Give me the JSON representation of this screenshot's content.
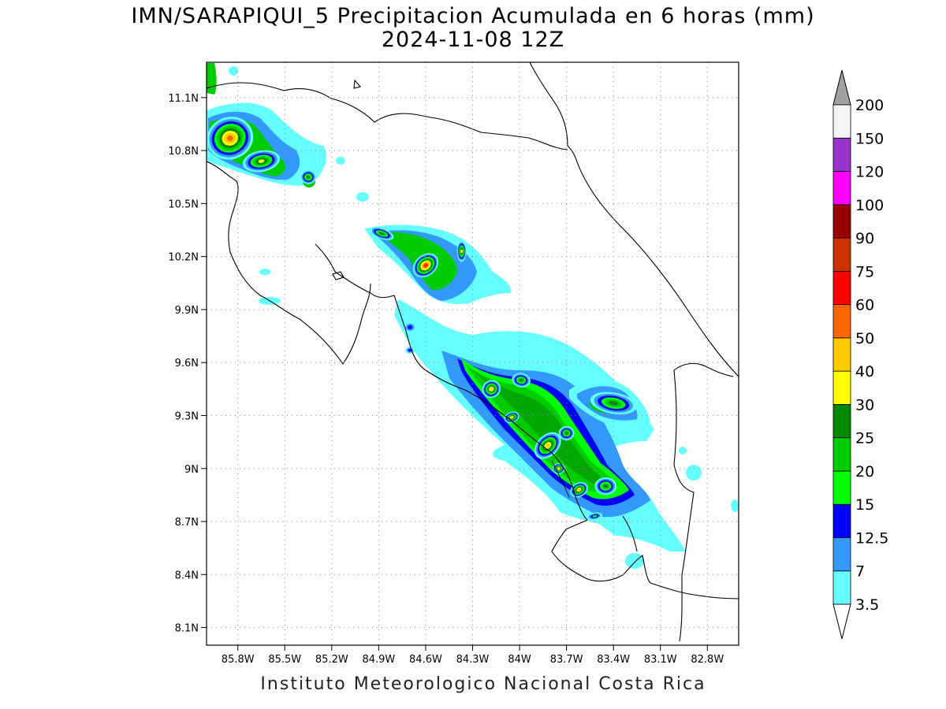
{
  "title": "IMN/SARAPIQUI_5 Precipitacion Acumulada en 6 horas (mm)",
  "subtitle": "2024-11-08 12Z",
  "footer": "Instituto Meteorologico Nacional Costa Rica",
  "map": {
    "lon_range": [
      -86.0,
      -82.6
    ],
    "lat_range": [
      8.0,
      11.3
    ],
    "lon_ticks": [
      "85.8W",
      "85.5W",
      "85.2W",
      "84.9W",
      "84.6W",
      "84.3W",
      "84W",
      "83.7W",
      "83.4W",
      "83.1W",
      "82.8W"
    ],
    "lon_tick_values": [
      -85.8,
      -85.5,
      -85.2,
      -84.9,
      -84.6,
      -84.3,
      -84.0,
      -83.7,
      -83.4,
      -83.1,
      -82.8
    ],
    "lat_ticks": [
      "8.1N",
      "8.4N",
      "8.7N",
      "9N",
      "9.3N",
      "9.6N",
      "9.9N",
      "10.2N",
      "10.5N",
      "10.8N",
      "11.1N"
    ],
    "lat_tick_values": [
      8.1,
      8.4,
      8.7,
      9.0,
      9.3,
      9.6,
      9.9,
      10.2,
      10.5,
      10.8,
      11.1
    ],
    "grid": "dotted"
  },
  "colorbar": {
    "labels": [
      "3.5",
      "7",
      "12.5",
      "15",
      "20",
      "25",
      "30",
      "40",
      "50",
      "60",
      "75",
      "90",
      "100",
      "120",
      "150",
      "200"
    ],
    "colors": [
      "#66ffff",
      "#3399ff",
      "#0000ff",
      "#00ff00",
      "#00cc00",
      "#008800",
      "#ffff00",
      "#ffcc00",
      "#ff6600",
      "#ff0000",
      "#cc3300",
      "#990000",
      "#ff00ff",
      "#9933cc",
      "#f5f5f5"
    ],
    "triangle_low": "#ffffff",
    "triangle_high": "#a0a0a0"
  },
  "rain_cells": [
    {
      "lon": -85.85,
      "lat": 10.87,
      "rx": 0.15,
      "ry": 0.12,
      "rot": 20,
      "level": 8
    },
    {
      "lon": -85.65,
      "lat": 10.74,
      "rx": 0.12,
      "ry": 0.06,
      "rot": 10,
      "level": 6
    },
    {
      "lon": -85.35,
      "lat": 10.65,
      "rx": 0.05,
      "ry": 0.04,
      "rot": 0,
      "level": 5
    },
    {
      "lon": -84.88,
      "lat": 10.33,
      "rx": 0.08,
      "ry": 0.03,
      "rot": -20,
      "level": 5
    },
    {
      "lon": -84.6,
      "lat": 10.15,
      "rx": 0.09,
      "ry": 0.06,
      "rot": 40,
      "level": 9
    },
    {
      "lon": -84.37,
      "lat": 10.23,
      "rx": 0.03,
      "ry": 0.06,
      "rot": 0,
      "level": 6
    },
    {
      "lon": -84.7,
      "lat": 9.8,
      "rx": 0.04,
      "ry": 0.03,
      "rot": 0,
      "level": 2
    },
    {
      "lon": -84.7,
      "lat": 9.67,
      "rx": 0.03,
      "ry": 0.02,
      "rot": 0,
      "level": 2
    },
    {
      "lon": -84.18,
      "lat": 9.45,
      "rx": 0.06,
      "ry": 0.05,
      "rot": 30,
      "level": 7
    },
    {
      "lon": -84.05,
      "lat": 9.29,
      "rx": 0.05,
      "ry": 0.03,
      "rot": 20,
      "level": 7
    },
    {
      "lon": -83.99,
      "lat": 9.5,
      "rx": 0.06,
      "ry": 0.04,
      "rot": -10,
      "level": 5
    },
    {
      "lon": -83.82,
      "lat": 9.13,
      "rx": 0.1,
      "ry": 0.06,
      "rot": 45,
      "level": 7
    },
    {
      "lon": -83.75,
      "lat": 9.0,
      "rx": 0.04,
      "ry": 0.03,
      "rot": 0,
      "level": 7
    },
    {
      "lon": -83.62,
      "lat": 8.88,
      "rx": 0.06,
      "ry": 0.04,
      "rot": 30,
      "level": 7
    },
    {
      "lon": -83.45,
      "lat": 8.9,
      "rx": 0.07,
      "ry": 0.05,
      "rot": 0,
      "level": 5
    },
    {
      "lon": -83.7,
      "lat": 9.2,
      "rx": 0.05,
      "ry": 0.04,
      "rot": 0,
      "level": 5
    },
    {
      "lon": -83.4,
      "lat": 9.37,
      "rx": 0.15,
      "ry": 0.06,
      "rot": -10,
      "level": 5
    },
    {
      "lon": -83.52,
      "lat": 8.73,
      "rx": 0.05,
      "ry": 0.02,
      "rot": 10,
      "level": 3
    }
  ]
}
